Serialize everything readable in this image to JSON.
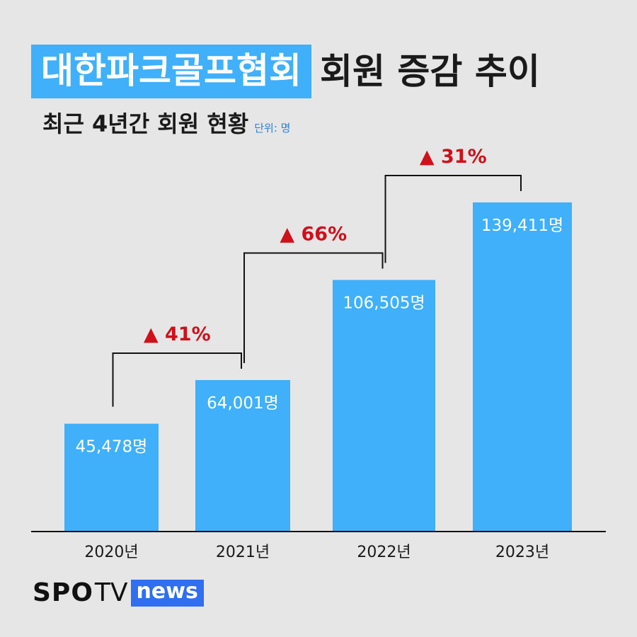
{
  "header": {
    "title_highlight": "대한파크골프협회",
    "title_rest": "회원 증감 추이",
    "subtitle": "최근 4년간 회원 현황",
    "unit": "단위: 명"
  },
  "colors": {
    "bar": "#3fb0f9",
    "highlight_bg": "#3fb0f9",
    "increase": "#d0101a",
    "text": "#1a1a1a"
  },
  "chart_data": {
    "type": "bar",
    "categories": [
      "2020년",
      "2021년",
      "2022년",
      "2023년"
    ],
    "values": [
      45478,
      64001,
      106505,
      139411
    ],
    "data_labels": [
      "45,478명",
      "64,001명",
      "106,505명",
      "139,411명"
    ],
    "changes": [
      "▲ 41%",
      "▲ 66%",
      "▲ 31%"
    ],
    "title": "대한파크골프협회 회원 증감 추이",
    "subtitle": "최근 4년간 회원 현황",
    "unit": "단위: 명",
    "ylim": [
      0,
      139411
    ],
    "grid": false
  },
  "footer": {
    "logo_spo": "SPO",
    "logo_tv": "TV",
    "logo_news": "news"
  }
}
